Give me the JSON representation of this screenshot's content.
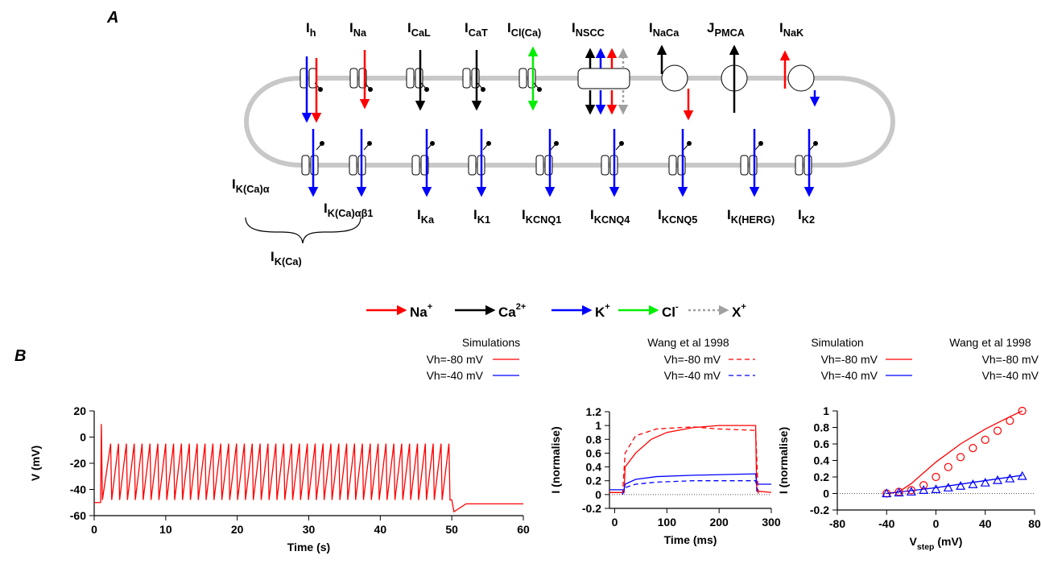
{
  "panel_a": {
    "letter": "A",
    "top_labels": [
      {
        "main": "I",
        "sub": "h"
      },
      {
        "main": "I",
        "sub": "Na"
      },
      {
        "main": "I",
        "sub": "CaL"
      },
      {
        "main": "I",
        "sub": "CaT"
      },
      {
        "main": "I",
        "sub": "Cl(Ca)"
      },
      {
        "main": "I",
        "sub": "NSCC"
      },
      {
        "main": "I",
        "sub": "NaCa"
      },
      {
        "main": "J",
        "sub": "PMCA"
      },
      {
        "main": "I",
        "sub": "NaK"
      }
    ],
    "bottom_labels": [
      {
        "main": "I",
        "sub": "K(Ca)α"
      },
      {
        "main": "I",
        "sub": "K(Ca)αβ1"
      },
      {
        "main": "I",
        "sub": "Ka"
      },
      {
        "main": "I",
        "sub": "K1"
      },
      {
        "main": "I",
        "sub": "KCNQ1"
      },
      {
        "main": "I",
        "sub": "KCNQ4"
      },
      {
        "main": "I",
        "sub": "KCNQ5"
      },
      {
        "main": "I",
        "sub": "K(HERG)"
      },
      {
        "main": "I",
        "sub": "K2"
      }
    ],
    "group_label": {
      "main": "I",
      "sub": "K(Ca)"
    },
    "ion_legend": [
      {
        "main": "Na",
        "sup": "+",
        "color": "#ff0000",
        "style": "solid"
      },
      {
        "main": "Ca",
        "sup": "2+",
        "color": "#000000",
        "style": "solid"
      },
      {
        "main": "K",
        "sup": "+",
        "color": "#0000ff",
        "style": "solid"
      },
      {
        "main": "Cl",
        "sup": "-",
        "color": "#00ee00",
        "style": "solid"
      },
      {
        "main": "X",
        "sup": "+",
        "color": "#a0a0a0",
        "style": "dotted"
      }
    ]
  },
  "panel_b": {
    "letter": "B"
  },
  "chart_data": [
    {
      "type": "line",
      "ylabel": "V (mV)",
      "xlabel": "Time (s)",
      "xlim": [
        0,
        60
      ],
      "ylim": [
        -60,
        20
      ],
      "xticks": [
        0,
        10,
        20,
        30,
        40,
        50,
        60
      ],
      "yticks": [
        -60,
        -40,
        -20,
        0,
        20
      ],
      "series": [
        {
          "color": "#ff0000",
          "x": [
            0,
            0.9,
            1.0,
            1.15,
            2.3,
            2.45,
            3.4,
            3.55,
            4.5,
            4.65,
            5.6,
            5.75,
            6.7,
            6.85,
            7.8,
            7.95,
            8.9,
            9.05,
            10,
            10.15,
            11.1,
            11.25,
            12.2,
            12.35,
            13.3,
            13.45,
            14.4,
            14.55,
            15.5,
            15.65,
            16.6,
            16.75,
            17.7,
            17.85,
            18.8,
            18.95,
            19.9,
            20.05,
            21,
            21.15,
            22.1,
            22.25,
            23.2,
            23.35,
            24.3,
            24.45,
            25.4,
            25.55,
            26.5,
            26.65,
            27.6,
            27.75,
            28.7,
            28.85,
            29.8,
            29.95,
            30.9,
            31.05,
            32,
            32.15,
            33.1,
            33.25,
            34.2,
            34.35,
            35.3,
            35.45,
            36.4,
            36.55,
            37.5,
            37.65,
            38.6,
            38.75,
            39.7,
            39.85,
            40.8,
            40.95,
            41.9,
            42.05,
            43,
            43.15,
            44.1,
            44.25,
            45.2,
            45.35,
            46.3,
            46.45,
            47.4,
            47.55,
            48.5,
            48.65,
            49.6,
            49.75,
            50,
            50.3,
            52,
            60
          ],
          "values": [
            -50,
            -50,
            10,
            -48,
            -5,
            -48,
            -5,
            -48,
            -5,
            -48,
            -5,
            -48,
            -5,
            -48,
            -5,
            -48,
            -5,
            -48,
            -5,
            -48,
            -5,
            -48,
            -5,
            -48,
            -5,
            -48,
            -5,
            -48,
            -5,
            -48,
            -5,
            -48,
            -5,
            -48,
            -5,
            -48,
            -5,
            -48,
            -5,
            -48,
            -5,
            -48,
            -5,
            -48,
            -5,
            -48,
            -5,
            -48,
            -5,
            -48,
            -5,
            -48,
            -5,
            -48,
            -5,
            -48,
            -5,
            -48,
            -5,
            -48,
            -5,
            -48,
            -5,
            -48,
            -5,
            -48,
            -5,
            -48,
            -5,
            -48,
            -5,
            -48,
            -5,
            -48,
            -5,
            -48,
            -5,
            -48,
            -5,
            -48,
            -5,
            -48,
            -5,
            -48,
            -5,
            -48,
            -5,
            -48,
            -5,
            -48,
            -5,
            -48,
            -48,
            -57,
            -51,
            -51
          ]
        }
      ]
    },
    {
      "type": "line",
      "ylabel": "I (normalise)",
      "xlabel": "Time (ms)",
      "xlim": [
        -10,
        300
      ],
      "ylim": [
        -0.2,
        1.2
      ],
      "xticks": [
        0,
        100,
        200,
        300
      ],
      "yticks": [
        -0.2,
        0,
        0.2,
        0.4,
        0.6,
        0.8,
        1,
        1.2
      ],
      "zero_line": true,
      "legend_titles": [
        "Simulations",
        "Wang et al 1998"
      ],
      "series": [
        {
          "name": "Vh=-80 mV",
          "color": "#ff0000",
          "dash": false,
          "legend_column": 0,
          "x": [
            -10,
            18,
            20,
            40,
            70,
            100,
            150,
            200,
            270,
            272,
            300
          ],
          "values": [
            0.03,
            0.03,
            0.4,
            0.6,
            0.8,
            0.9,
            0.97,
            1,
            1,
            0.05,
            0.03
          ]
        },
        {
          "name": "Vh=-40 mV",
          "color": "#0000ff",
          "dash": false,
          "legend_column": 0,
          "x": [
            -10,
            18,
            20,
            40,
            80,
            150,
            270,
            272,
            300
          ],
          "values": [
            0.07,
            0.07,
            0.15,
            0.22,
            0.26,
            0.28,
            0.3,
            0.15,
            0.15
          ]
        },
        {
          "name": "Vh=-80 mV",
          "color": "#ff0000",
          "dash": true,
          "legend_column": 1,
          "x": [
            15,
            20,
            40,
            80,
            150,
            200,
            270,
            275
          ],
          "values": [
            0,
            0.6,
            0.85,
            0.95,
            0.98,
            0.95,
            0.93,
            0
          ]
        },
        {
          "name": "Vh=-40 mV",
          "color": "#0000ff",
          "dash": true,
          "legend_column": 1,
          "x": [
            15,
            20,
            40,
            80,
            150,
            270,
            275
          ],
          "values": [
            0,
            0.1,
            0.15,
            0.18,
            0.2,
            0.2,
            0
          ]
        }
      ]
    },
    {
      "type": "line",
      "ylabel": "I (normalise)",
      "xlabel": {
        "main": "V",
        "sub": "step",
        "rest": " (mV)"
      },
      "xlim": [
        -80,
        80
      ],
      "ylim": [
        -0.2,
        1
      ],
      "xticks": [
        -80,
        -40,
        0,
        40,
        80
      ],
      "yticks": [
        -0.2,
        0,
        0.2,
        0.4,
        0.6,
        0.8,
        1
      ],
      "zero_line": true,
      "legend_titles": [
        "Simulation",
        "Wang et al 1998"
      ],
      "series": [
        {
          "name": "Vh=-80 mV",
          "color": "#ff0000",
          "legend_column": 0,
          "x": [
            -40,
            -30,
            -20,
            0,
            20,
            40,
            60,
            70
          ],
          "values": [
            0,
            0.02,
            0.12,
            0.38,
            0.6,
            0.78,
            0.93,
            1
          ]
        },
        {
          "name": "Vh=-40 mV",
          "color": "#0000ff",
          "legend_column": 0,
          "x": [
            -40,
            0,
            70
          ],
          "values": [
            0,
            0.07,
            0.22
          ]
        },
        {
          "name": "Vh=-80 mV",
          "color": "#ff0000",
          "marker": "circle",
          "legend_column": 1,
          "x": [
            -40,
            -30,
            -20,
            -10,
            0,
            10,
            20,
            30,
            40,
            50,
            60,
            70
          ],
          "values": [
            0,
            0.02,
            0.04,
            0.1,
            0.2,
            0.32,
            0.44,
            0.55,
            0.65,
            0.76,
            0.88,
            1
          ]
        },
        {
          "name": "Vh=-40 mV",
          "color": "#0000ff",
          "marker": "triangle",
          "legend_column": 1,
          "x": [
            -40,
            -30,
            -20,
            -10,
            0,
            10,
            20,
            30,
            40,
            50,
            60,
            70
          ],
          "values": [
            0,
            0.01,
            0.02,
            0.04,
            0.05,
            0.07,
            0.09,
            0.11,
            0.13,
            0.16,
            0.18,
            0.21
          ]
        }
      ]
    }
  ]
}
